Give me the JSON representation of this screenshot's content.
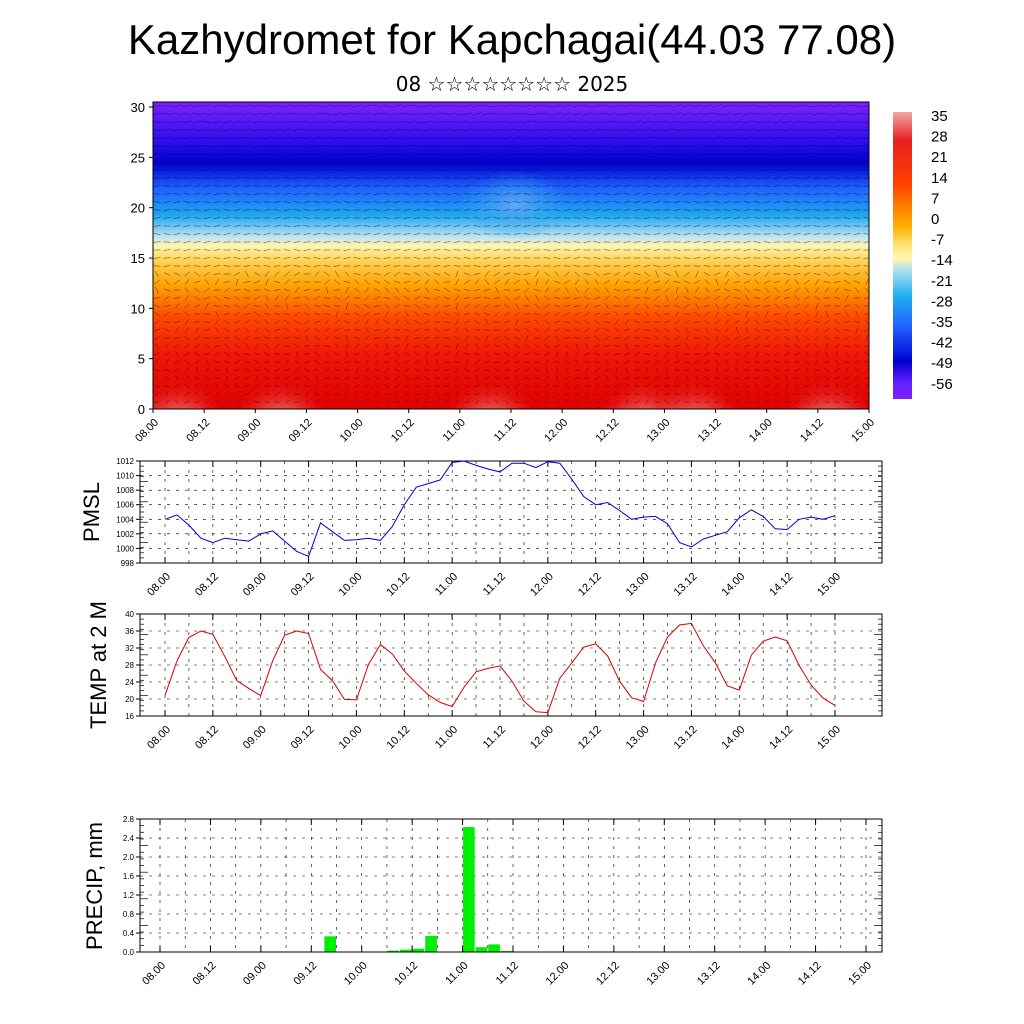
{
  "header": {
    "title": "Kazhydromet for Kapchagai(44.03 77.08)",
    "subtitle": "08 ☆☆☆☆☆☆☆☆ 2025"
  },
  "chart_data": [
    {
      "type": "heatmap",
      "panel": "vertical-section",
      "x_ticks": [
        "08.00",
        "08.12",
        "09.00",
        "09.12",
        "10.00",
        "10.12",
        "11.00",
        "11.12",
        "12.00",
        "12.12",
        "13.00",
        "13.12",
        "14.00",
        "14.12",
        "15.00"
      ],
      "y_ticks": [
        0,
        5,
        10,
        15,
        20,
        25,
        30
      ],
      "ylim": [
        0,
        30.5
      ],
      "colorbar_ticks": [
        "35",
        "28",
        "21",
        "14",
        "7",
        "0",
        "-7",
        "-14",
        "-21",
        "-28",
        "-35",
        "-42",
        "-49",
        "-56"
      ],
      "colorbar_colors": [
        "#f2a6a6",
        "#e82020",
        "#ff4000",
        "#ff8000",
        "#ffb000",
        "#ffe070",
        "#fff8b0",
        "#b0e0f0",
        "#20b0f0",
        "#2060ff",
        "#0000d0",
        "#6020ff",
        "#8020ff"
      ],
      "warm_cells": [
        {
          "x_day": 0.25,
          "color": "#f4aaaa"
        },
        {
          "x_day": 1.25,
          "color": "#f08080"
        },
        {
          "x_day": 3.3,
          "color": "#ec7070"
        },
        {
          "x_day": 4.8,
          "color": "#f08080"
        },
        {
          "x_day": 5.3,
          "color": "#f8b8b8"
        },
        {
          "x_day": 6.6,
          "color": "#ec7070"
        }
      ]
    },
    {
      "type": "line",
      "panel": "pmsl",
      "ylabel": "PMSL",
      "ylim": [
        998,
        1012
      ],
      "y_ticks": [
        998,
        1000,
        1002,
        1004,
        1006,
        1008,
        1010,
        1012
      ],
      "x_ticks": [
        "08.00",
        "08.12",
        "09.00",
        "09.12",
        "10.00",
        "10.12",
        "11.00",
        "11.12",
        "12.00",
        "12.12",
        "13.00",
        "13.12",
        "14.00",
        "14.12",
        "15.00"
      ],
      "color": "#0000cc",
      "values": [
        1004,
        1004.6,
        1003.2,
        1001.4,
        1000.8,
        1001.4,
        1001.2,
        1001.0,
        1002,
        1002.4,
        1001,
        999.6,
        998.9,
        1003.5,
        1002.3,
        1001.1,
        1001.2,
        1001.4,
        1001.1,
        1003.0,
        1006.0,
        1008.4,
        1008.9,
        1009.4,
        1011.8,
        1012.0,
        1011.4,
        1010.9,
        1010.5,
        1011.7,
        1011.7,
        1011.1,
        1011.9,
        1011.7,
        1009.5,
        1007.1,
        1006,
        1006.3,
        1005.2,
        1004,
        1004.3,
        1004.4,
        1003.4,
        1000.8,
        1000.2,
        1001.3,
        1001.8,
        1002.3,
        1004.2,
        1005.3,
        1004.4,
        1002.7,
        1002.6,
        1004,
        1004.3,
        1004.0,
        1004.5
      ]
    },
    {
      "type": "line",
      "panel": "temp-2m",
      "ylabel": "TEMP at 2 M",
      "ylim": [
        16,
        40
      ],
      "y_ticks": [
        16,
        20,
        24,
        28,
        32,
        36,
        40
      ],
      "x_ticks": [
        "08.00",
        "08.12",
        "09.00",
        "09.12",
        "10.00",
        "10.12",
        "11.00",
        "11.12",
        "12.00",
        "12.12",
        "13.00",
        "13.12",
        "14.00",
        "14.12",
        "15.00"
      ],
      "color": "#dd0000",
      "values": [
        20.8,
        29,
        34.5,
        36,
        35.2,
        30,
        24.3,
        22.5,
        20.8,
        29,
        35,
        36,
        35.4,
        27,
        24.3,
        19.9,
        19.8,
        28.1,
        32.8,
        30.6,
        26.6,
        23.7,
        21,
        19.2,
        18.2,
        22.8,
        26.4,
        27.2,
        27.8,
        24.2,
        19.5,
        17,
        16.8,
        24.9,
        28.5,
        32.2,
        33,
        30.1,
        24.2,
        20.3,
        19.4,
        28.5,
        34.6,
        37.4,
        37.8,
        32.5,
        28.5,
        23.1,
        22.1,
        30.3,
        33.6,
        34.6,
        33.7,
        27.9,
        23.3,
        20.2,
        18.5
      ]
    },
    {
      "type": "bar",
      "panel": "precip",
      "ylabel": "PRECIP, mm",
      "ylim": [
        0,
        2.8
      ],
      "y_ticks": [
        "0.0",
        "0.4",
        "0.8",
        "1.2",
        "1.6",
        "2.0",
        "2.4",
        "2.8"
      ],
      "x_ticks": [
        "08.00",
        "08.12",
        "09.00",
        "09.12",
        "10.00",
        "10.12",
        "11.00",
        "11.12",
        "12.00",
        "12.12",
        "13.00",
        "13.12",
        "14.00",
        "14.12",
        "15.00"
      ],
      "color": "#00ee00",
      "bars": [
        {
          "t": 13.5,
          "value": 0.33
        },
        {
          "t": 18.5,
          "value": 0.03
        },
        {
          "t": 19.5,
          "value": 0.05
        },
        {
          "t": 20.5,
          "value": 0.07
        },
        {
          "t": 21.5,
          "value": 0.34
        },
        {
          "t": 24.5,
          "value": 2.63
        },
        {
          "t": 25.5,
          "value": 0.1
        },
        {
          "t": 26.5,
          "value": 0.16
        },
        {
          "t": 27.5,
          "value": 0.02
        }
      ]
    }
  ]
}
